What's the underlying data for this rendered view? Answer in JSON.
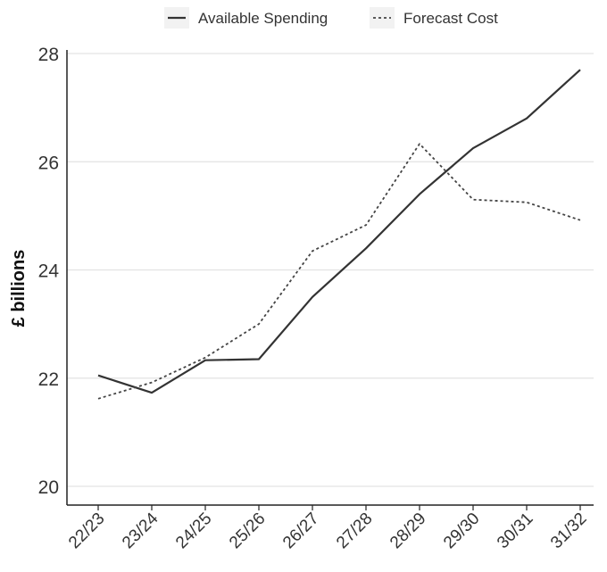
{
  "chart_data": {
    "type": "line",
    "title": "",
    "xlabel": "",
    "ylabel": "£ billions",
    "categories": [
      "22/23",
      "23/24",
      "24/25",
      "25/26",
      "26/27",
      "27/28",
      "28/29",
      "29/30",
      "30/31",
      "31/32"
    ],
    "ylim": [
      20,
      28
    ],
    "yticks": [
      20,
      22,
      24,
      26,
      28
    ],
    "grid": "horizontal",
    "legend_position": "top",
    "series": [
      {
        "name": "Available Spending",
        "style": "solid",
        "color": "#333333",
        "values": [
          22.05,
          21.73,
          22.33,
          22.35,
          23.5,
          24.4,
          25.4,
          26.25,
          26.8,
          27.7
        ]
      },
      {
        "name": "Forecast Cost",
        "style": "dotted",
        "color": "#444444",
        "values": [
          21.62,
          21.92,
          22.38,
          23.0,
          24.35,
          24.83,
          26.33,
          25.3,
          25.25,
          24.92
        ]
      }
    ]
  }
}
